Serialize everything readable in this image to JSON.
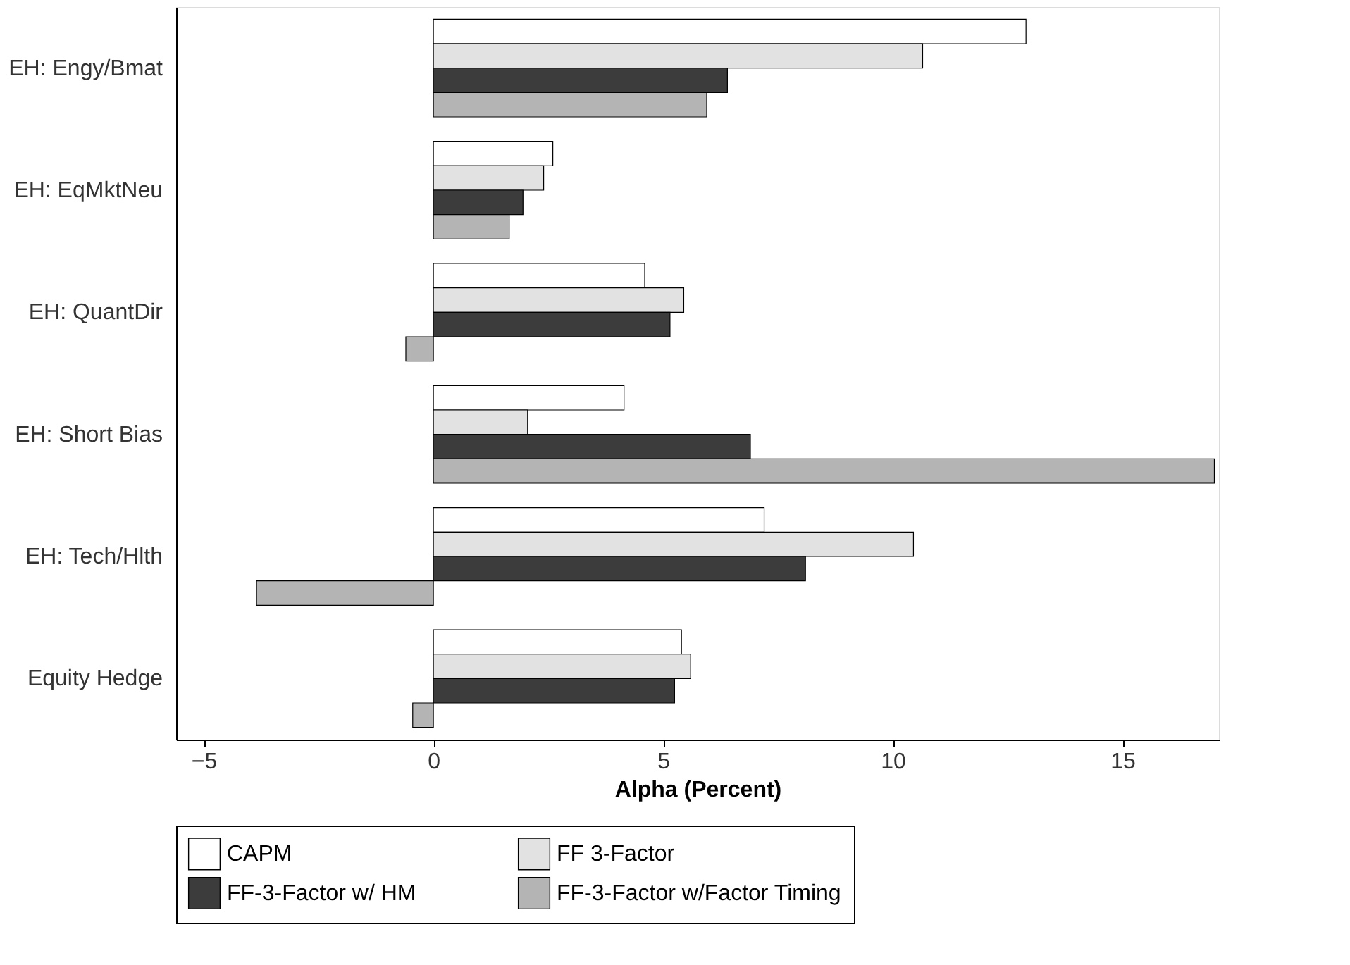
{
  "chart_data": {
    "type": "bar",
    "orientation": "horizontal",
    "xlabel": "Alpha (Percent)",
    "categories": [
      "EH: Engy/Bmat",
      "EH: EqMktNeu",
      "EH: QuantDir",
      "EH: Short Bias",
      "EH: Tech/Hlth",
      "Equity Hedge"
    ],
    "series": [
      {
        "name": "CAPM",
        "color": "#ffffff",
        "values": [
          12.9,
          2.6,
          4.6,
          4.15,
          7.2,
          5.4
        ]
      },
      {
        "name": "FF 3-Factor",
        "color": "#e2e2e2",
        "values": [
          10.65,
          2.4,
          5.45,
          2.05,
          10.45,
          5.6
        ]
      },
      {
        "name": "FF-3-Factor w/ HM",
        "color": "#3c3c3c",
        "values": [
          6.4,
          1.95,
          5.15,
          6.9,
          8.1,
          5.25
        ]
      },
      {
        "name": "FF-3-Factor w/Factor Timing",
        "color": "#b4b4b4",
        "values": [
          5.95,
          1.65,
          -0.6,
          17.0,
          -3.85,
          -0.45
        ]
      }
    ],
    "xlim": [
      -5.6,
      17.1
    ],
    "xticks": [
      -5,
      0,
      5,
      10,
      15
    ],
    "grid": false,
    "legend": "bottom"
  }
}
